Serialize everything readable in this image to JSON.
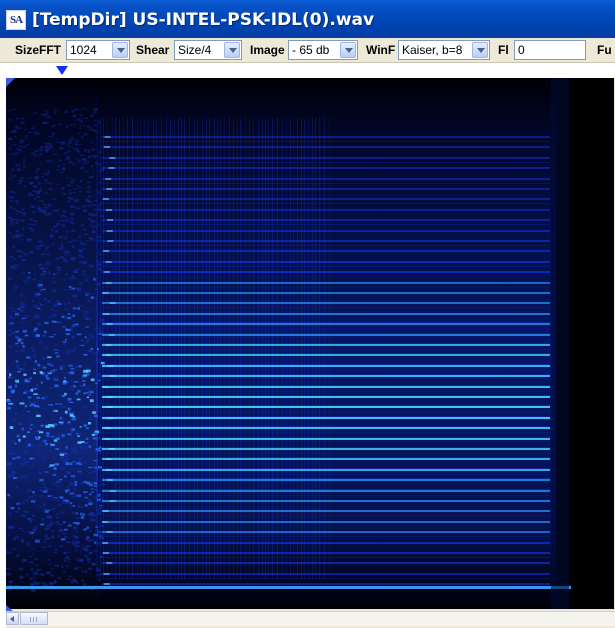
{
  "window": {
    "icon_text": "SA",
    "title": "[TempDir] US-INTEL-PSK-IDL(0).wav"
  },
  "toolbar": {
    "sizefft": {
      "label": "SizeFFT",
      "value": "1024"
    },
    "shear": {
      "label": "Shear",
      "value": "Size/4"
    },
    "image": {
      "label": "Image",
      "value": "- 65 db"
    },
    "winf": {
      "label": "WinF",
      "value": "Kaiser, b=8"
    },
    "fl": {
      "label": "Fl",
      "value": "0"
    },
    "fu": {
      "label": "Fu"
    }
  },
  "colors": {
    "spectrogram_background": "#000000",
    "signal_peak": "#40d0ff",
    "signal_mid": "#1838ff",
    "marker": "#1030ff"
  }
}
